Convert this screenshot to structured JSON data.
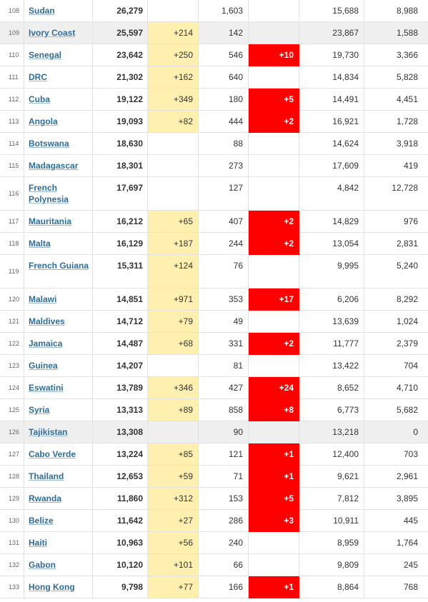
{
  "colors": {
    "new_cases_bg": "#fff0b0",
    "new_deaths_bg": "#ff0000",
    "link": "#2e6d9c",
    "highlight_row": "#efefef"
  },
  "rows": [
    {
      "num": "108",
      "country": "Sudan",
      "total_cases": "26,279",
      "new_cases": "",
      "total_deaths": "1,603",
      "new_deaths": "",
      "total_recovered": "15,688",
      "active_cases": "8,988"
    },
    {
      "num": "109",
      "country": "Ivory Coast",
      "total_cases": "25,597",
      "new_cases": "+214",
      "total_deaths": "142",
      "new_deaths": "",
      "total_recovered": "23,867",
      "active_cases": "1,588",
      "highlight": true
    },
    {
      "num": "110",
      "country": "Senegal",
      "total_cases": "23,642",
      "new_cases": "+250",
      "total_deaths": "546",
      "new_deaths": "+10",
      "total_recovered": "19,730",
      "active_cases": "3,366"
    },
    {
      "num": "111",
      "country": "DRC",
      "total_cases": "21,302",
      "new_cases": "+162",
      "total_deaths": "640",
      "new_deaths": "",
      "total_recovered": "14,834",
      "active_cases": "5,828"
    },
    {
      "num": "112",
      "country": "Cuba",
      "total_cases": "19,122",
      "new_cases": "+349",
      "total_deaths": "180",
      "new_deaths": "+5",
      "total_recovered": "14,491",
      "active_cases": "4,451"
    },
    {
      "num": "113",
      "country": "Angola",
      "total_cases": "19,093",
      "new_cases": "+82",
      "total_deaths": "444",
      "new_deaths": "+2",
      "total_recovered": "16,921",
      "active_cases": "1,728"
    },
    {
      "num": "114",
      "country": "Botswana",
      "total_cases": "18,630",
      "new_cases": "",
      "total_deaths": "88",
      "new_deaths": "",
      "total_recovered": "14,624",
      "active_cases": "3,918"
    },
    {
      "num": "115",
      "country": "Madagascar",
      "total_cases": "18,301",
      "new_cases": "",
      "total_deaths": "273",
      "new_deaths": "",
      "total_recovered": "17,609",
      "active_cases": "419"
    },
    {
      "num": "116",
      "country": "French Polynesia",
      "total_cases": "17,697",
      "new_cases": "",
      "total_deaths": "127",
      "new_deaths": "",
      "total_recovered": "4,842",
      "active_cases": "12,728",
      "tall": true
    },
    {
      "num": "117",
      "country": "Mauritania",
      "total_cases": "16,212",
      "new_cases": "+65",
      "total_deaths": "407",
      "new_deaths": "+2",
      "total_recovered": "14,829",
      "active_cases": "976"
    },
    {
      "num": "118",
      "country": "Malta",
      "total_cases": "16,129",
      "new_cases": "+187",
      "total_deaths": "244",
      "new_deaths": "+2",
      "total_recovered": "13,054",
      "active_cases": "2,831"
    },
    {
      "num": "119",
      "country": "French Guiana",
      "total_cases": "15,311",
      "new_cases": "+124",
      "total_deaths": "76",
      "new_deaths": "",
      "total_recovered": "9,995",
      "active_cases": "5,240",
      "tall": true
    },
    {
      "num": "120",
      "country": "Malawi",
      "total_cases": "14,851",
      "new_cases": "+971",
      "total_deaths": "353",
      "new_deaths": "+17",
      "total_recovered": "6,206",
      "active_cases": "8,292"
    },
    {
      "num": "121",
      "country": "Maldives",
      "total_cases": "14,712",
      "new_cases": "+79",
      "total_deaths": "49",
      "new_deaths": "",
      "total_recovered": "13,639",
      "active_cases": "1,024"
    },
    {
      "num": "122",
      "country": "Jamaica",
      "total_cases": "14,487",
      "new_cases": "+68",
      "total_deaths": "331",
      "new_deaths": "+2",
      "total_recovered": "11,777",
      "active_cases": "2,379"
    },
    {
      "num": "123",
      "country": "Guinea",
      "total_cases": "14,207",
      "new_cases": "",
      "total_deaths": "81",
      "new_deaths": "",
      "total_recovered": "13,422",
      "active_cases": "704"
    },
    {
      "num": "124",
      "country": "Eswatini",
      "total_cases": "13,789",
      "new_cases": "+346",
      "total_deaths": "427",
      "new_deaths": "+24",
      "total_recovered": "8,652",
      "active_cases": "4,710"
    },
    {
      "num": "125",
      "country": "Syria",
      "total_cases": "13,313",
      "new_cases": "+89",
      "total_deaths": "858",
      "new_deaths": "+8",
      "total_recovered": "6,773",
      "active_cases": "5,682"
    },
    {
      "num": "126",
      "country": "Tajikistan",
      "total_cases": "13,308",
      "new_cases": "",
      "total_deaths": "90",
      "new_deaths": "",
      "total_recovered": "13,218",
      "active_cases": "0",
      "highlight": true
    },
    {
      "num": "127",
      "country": "Cabo Verde",
      "total_cases": "13,224",
      "new_cases": "+85",
      "total_deaths": "121",
      "new_deaths": "+1",
      "total_recovered": "12,400",
      "active_cases": "703"
    },
    {
      "num": "128",
      "country": "Thailand",
      "total_cases": "12,653",
      "new_cases": "+59",
      "total_deaths": "71",
      "new_deaths": "+1",
      "total_recovered": "9,621",
      "active_cases": "2,961"
    },
    {
      "num": "129",
      "country": "Rwanda",
      "total_cases": "11,860",
      "new_cases": "+312",
      "total_deaths": "153",
      "new_deaths": "+5",
      "total_recovered": "7,812",
      "active_cases": "3,895"
    },
    {
      "num": "130",
      "country": "Belize",
      "total_cases": "11,642",
      "new_cases": "+27",
      "total_deaths": "286",
      "new_deaths": "+3",
      "total_recovered": "10,911",
      "active_cases": "445"
    },
    {
      "num": "131",
      "country": "Haiti",
      "total_cases": "10,963",
      "new_cases": "+56",
      "total_deaths": "240",
      "new_deaths": "",
      "total_recovered": "8,959",
      "active_cases": "1,764"
    },
    {
      "num": "132",
      "country": "Gabon",
      "total_cases": "10,120",
      "new_cases": "+101",
      "total_deaths": "66",
      "new_deaths": "",
      "total_recovered": "9,809",
      "active_cases": "245"
    },
    {
      "num": "133",
      "country": "Hong Kong",
      "total_cases": "9,798",
      "new_cases": "+77",
      "total_deaths": "166",
      "new_deaths": "+1",
      "total_recovered": "8,864",
      "active_cases": "768"
    }
  ]
}
